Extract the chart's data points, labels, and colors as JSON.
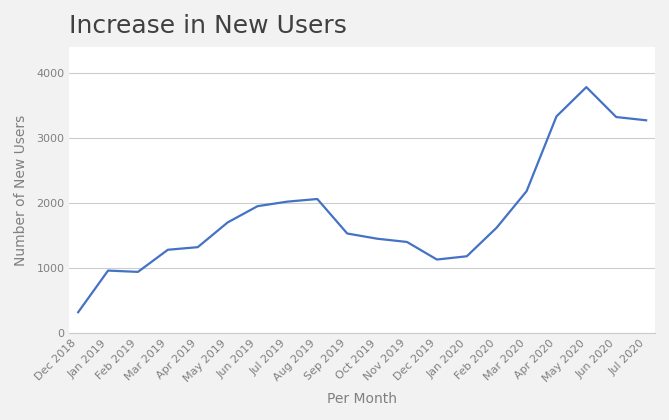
{
  "title": "Increase in New Users",
  "xlabel": "Per Month",
  "ylabel": "Number of New Users",
  "line_color": "#4472C4",
  "background_color": "#f2f2f2",
  "plot_bg_color": "#ffffff",
  "grid_color": "#cccccc",
  "title_color": "#404040",
  "label_color": "#808080",
  "tick_color": "#808080",
  "outer_border_color": "#c0c0c0",
  "categories": [
    "Dec 2018",
    "Jan 2019",
    "Feb 2019",
    "Mar 2019",
    "Apr 2019",
    "May 2019",
    "Jun 2019",
    "Jul 2019",
    "Aug 2019",
    "Sep 2019",
    "Oct 2019",
    "Nov 2019",
    "Dec 2019",
    "Jan 2020",
    "Feb 2020",
    "Mar 2020",
    "Apr 2020",
    "May 2020",
    "Jun 2020",
    "Jul 2020"
  ],
  "values": [
    320,
    960,
    940,
    1280,
    1320,
    1700,
    1950,
    2020,
    2060,
    1530,
    1450,
    1400,
    1130,
    1180,
    1620,
    2180,
    3330,
    3780,
    3320,
    3270
  ],
  "ylim": [
    0,
    4400
  ],
  "yticks": [
    0,
    1000,
    2000,
    3000,
    4000
  ],
  "title_fontsize": 18,
  "axis_label_fontsize": 10,
  "tick_fontsize": 8,
  "line_width": 1.6
}
